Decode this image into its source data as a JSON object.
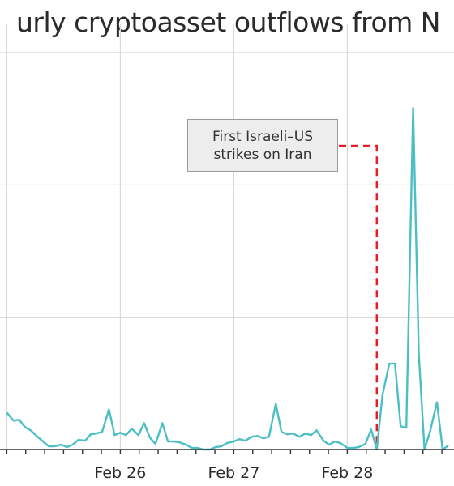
{
  "chart_data": {
    "type": "line",
    "title": "urly cryptoasset outflows from N",
    "ylabel": "",
    "xlabel": "",
    "x_labels": [
      "Feb 26",
      "Feb 27",
      "Feb 28"
    ],
    "series": [
      {
        "color": "#4bbfc4",
        "points": [
          [
            -1.0,
            46
          ],
          [
            -0.94,
            36
          ],
          [
            -0.89,
            37
          ],
          [
            -0.84,
            28
          ],
          [
            -0.79,
            24
          ],
          [
            -0.73,
            16
          ],
          [
            -0.68,
            10
          ],
          [
            -0.63,
            4
          ],
          [
            -0.58,
            4
          ],
          [
            -0.52,
            6
          ],
          [
            -0.47,
            3
          ],
          [
            -0.42,
            6
          ],
          [
            -0.37,
            12
          ],
          [
            -0.31,
            11
          ],
          [
            -0.26,
            19
          ],
          [
            -0.21,
            20
          ],
          [
            -0.16,
            22
          ],
          [
            -0.1,
            50
          ],
          [
            -0.05,
            18
          ],
          [
            0.0,
            21
          ],
          [
            0.05,
            18
          ],
          [
            0.1,
            26
          ],
          [
            0.16,
            18
          ],
          [
            0.21,
            33
          ],
          [
            0.26,
            15
          ],
          [
            0.31,
            7
          ],
          [
            0.37,
            33
          ],
          [
            0.42,
            10
          ],
          [
            0.47,
            10
          ],
          [
            0.52,
            9
          ],
          [
            0.58,
            6
          ],
          [
            0.63,
            2
          ],
          [
            0.68,
            2
          ],
          [
            0.73,
            0
          ],
          [
            0.79,
            0
          ],
          [
            0.84,
            3
          ],
          [
            0.89,
            4
          ],
          [
            0.94,
            8
          ],
          [
            1.0,
            10
          ],
          [
            1.05,
            13
          ],
          [
            1.1,
            11
          ],
          [
            1.16,
            16
          ],
          [
            1.21,
            17
          ],
          [
            1.26,
            14
          ],
          [
            1.31,
            16
          ],
          [
            1.37,
            57
          ],
          [
            1.42,
            22
          ],
          [
            1.47,
            19
          ],
          [
            1.52,
            20
          ],
          [
            1.58,
            16
          ],
          [
            1.63,
            20
          ],
          [
            1.68,
            18
          ],
          [
            1.73,
            24
          ],
          [
            1.79,
            11
          ],
          [
            1.84,
            6
          ],
          [
            1.89,
            10
          ],
          [
            1.94,
            8
          ],
          [
            2.0,
            2
          ],
          [
            2.05,
            2
          ],
          [
            2.1,
            3
          ],
          [
            2.16,
            7
          ],
          [
            2.21,
            25
          ],
          [
            2.26,
            0
          ],
          [
            2.31,
            68
          ],
          [
            2.37,
            107
          ],
          [
            2.42,
            107
          ],
          [
            2.47,
            29
          ],
          [
            2.52,
            27
          ],
          [
            2.58,
            426
          ],
          [
            2.63,
            119
          ],
          [
            2.68,
            0
          ],
          [
            2.73,
            23
          ],
          [
            2.79,
            59
          ],
          [
            2.84,
            0
          ],
          [
            2.89,
            5
          ]
        ]
      }
    ],
    "annotation": {
      "line1": "First Israeli–US",
      "line2": "strikes on Iran",
      "x": 2.26
    },
    "xlim": [
      -1.06,
      2.94
    ],
    "ylim": [
      0,
      500
    ],
    "grid": true
  }
}
